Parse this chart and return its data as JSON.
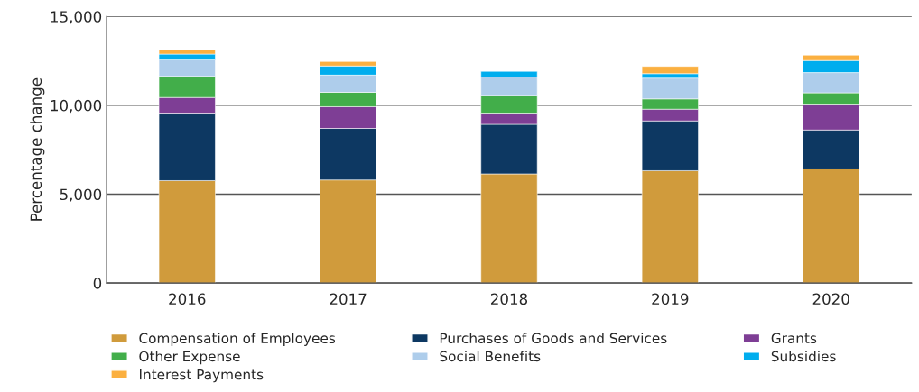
{
  "chart_data": {
    "type": "bar",
    "stacked": true,
    "ylabel": "Percentage change",
    "categories": [
      "2016",
      "2017",
      "2018",
      "2019",
      "2020"
    ],
    "series": [
      {
        "name": "Compensation of Employees",
        "color": "#d09b3c",
        "values": [
          5760,
          5800,
          6140,
          6320,
          6420
        ]
      },
      {
        "name": "Purchases of Goods and Services",
        "color": "#0d3862",
        "values": [
          3800,
          2900,
          2790,
          2800,
          2190
        ]
      },
      {
        "name": "Grants",
        "color": "#7e3e95",
        "values": [
          880,
          1220,
          630,
          660,
          1460
        ]
      },
      {
        "name": "Other Expense",
        "color": "#42ae4a",
        "values": [
          1190,
          810,
          1000,
          580,
          630
        ]
      },
      {
        "name": "Social Benefits",
        "color": "#aecdeb",
        "values": [
          930,
          970,
          1030,
          1170,
          1140
        ]
      },
      {
        "name": "Subsidies",
        "color": "#00adee",
        "values": [
          320,
          510,
          320,
          250,
          680
        ]
      },
      {
        "name": "Interest Payments",
        "color": "#fbb040",
        "values": [
          240,
          250,
          null,
          410,
          300
        ]
      }
    ],
    "ylim": [
      0,
      15000
    ],
    "yticks": [
      {
        "value": 0,
        "label": "0"
      },
      {
        "value": 5000,
        "label": "5,000"
      },
      {
        "value": 10000,
        "label": "10,000"
      },
      {
        "value": 15000,
        "label": "15,000"
      }
    ],
    "grid": "y",
    "legend": "bottom"
  }
}
